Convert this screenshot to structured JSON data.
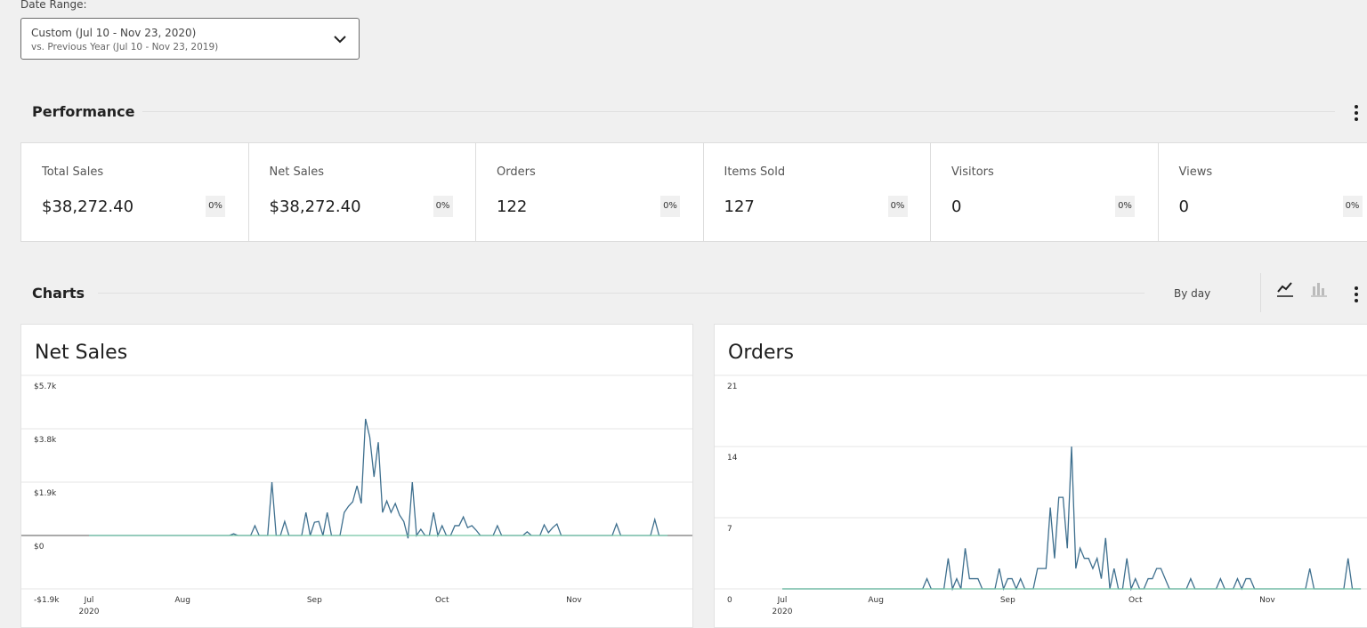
{
  "date_range": {
    "label": "Date Range:",
    "primary": "Custom (Jul 10 - Nov 23, 2020)",
    "secondary": "vs. Previous Year (Jul 10 - Nov 23, 2019)"
  },
  "performance": {
    "title": "Performance",
    "tiles": [
      {
        "label": "Total Sales",
        "value": "$38,272.40",
        "delta": "0%"
      },
      {
        "label": "Net Sales",
        "value": "$38,272.40",
        "delta": "0%"
      },
      {
        "label": "Orders",
        "value": "122",
        "delta": "0%"
      },
      {
        "label": "Items Sold",
        "value": "127",
        "delta": "0%"
      },
      {
        "label": "Visitors",
        "value": "0",
        "delta": "0%"
      },
      {
        "label": "Views",
        "value": "0",
        "delta": "0%"
      }
    ]
  },
  "charts_section": {
    "title": "Charts",
    "interval": "By day"
  },
  "chart_data": [
    {
      "type": "line",
      "title": "Net Sales",
      "year_label": "2020",
      "categories": [
        "Jul",
        null,
        null,
        null,
        null,
        null,
        null,
        null,
        null,
        null,
        null,
        null,
        null,
        null,
        null,
        null,
        null,
        null,
        null,
        null,
        null,
        null,
        "Aug",
        null,
        null,
        null,
        null,
        null,
        null,
        null,
        null,
        null,
        null,
        null,
        null,
        null,
        null,
        null,
        null,
        null,
        null,
        null,
        null,
        null,
        null,
        null,
        null,
        null,
        null,
        null,
        null,
        null,
        null,
        "Sep",
        null,
        null,
        null,
        null,
        null,
        null,
        null,
        null,
        null,
        null,
        null,
        null,
        null,
        null,
        null,
        null,
        null,
        null,
        null,
        null,
        null,
        null,
        null,
        null,
        null,
        null,
        null,
        null,
        null,
        "Oct",
        null,
        null,
        null,
        null,
        null,
        null,
        null,
        null,
        null,
        null,
        null,
        null,
        null,
        null,
        null,
        null,
        null,
        null,
        null,
        null,
        null,
        null,
        null,
        null,
        null,
        null,
        null,
        null,
        null,
        null,
        "Nov",
        null,
        null,
        null,
        null,
        null,
        null,
        null,
        null,
        null,
        null,
        null,
        null,
        null,
        null,
        null,
        null,
        null,
        null,
        null,
        null,
        null,
        null
      ],
      "ylim": [
        -1900,
        5700
      ],
      "yticks": [
        {
          "value": -1900,
          "label": "-$1.9k"
        },
        {
          "value": 0,
          "label": "$0"
        },
        {
          "value": 1900,
          "label": "$1.9k"
        },
        {
          "value": 3800,
          "label": "$3.8k"
        },
        {
          "value": 5700,
          "label": "$5.7k"
        }
      ],
      "grid": true,
      "series": [
        {
          "color": "#3e6f8e",
          "values": [
            0,
            0,
            0,
            0,
            0,
            0,
            0,
            0,
            0,
            0,
            0,
            0,
            0,
            0,
            0,
            0,
            0,
            0,
            0,
            0,
            0,
            0,
            0,
            0,
            0,
            0,
            0,
            0,
            0,
            0,
            0,
            0,
            0,
            0,
            60,
            0,
            0,
            0,
            0,
            350,
            0,
            0,
            0,
            1900,
            0,
            0,
            500,
            0,
            0,
            0,
            0,
            820,
            0,
            470,
            500,
            0,
            820,
            0,
            0,
            0,
            820,
            1040,
            1200,
            1770,
            1140,
            4150,
            3500,
            2090,
            3320,
            820,
            1230,
            820,
            1140,
            730,
            500,
            -100,
            1900,
            0,
            220,
            0,
            0,
            820,
            0,
            350,
            0,
            0,
            350,
            350,
            660,
            280,
            350,
            190,
            0,
            0,
            0,
            0,
            350,
            0,
            0,
            0,
            0,
            0,
            0,
            130,
            0,
            0,
            0,
            380,
            100,
            280,
            410,
            0,
            0,
            0,
            0,
            0,
            0,
            0,
            0,
            0,
            0,
            0,
            0,
            0,
            410,
            0,
            0,
            0,
            0,
            0,
            0,
            0,
            0,
            570,
            0,
            0,
            0
          ]
        },
        {
          "color": "#74c4a4",
          "values": [
            0,
            0,
            0,
            0,
            0,
            0,
            0,
            0,
            0,
            0,
            0,
            0,
            0,
            0,
            0,
            0,
            0,
            0,
            0,
            0,
            0,
            0,
            0,
            0,
            0,
            0,
            0,
            0,
            0,
            0,
            0,
            0,
            0,
            0,
            0,
            0,
            0,
            0,
            0,
            0,
            0,
            0,
            0,
            0,
            0,
            0,
            0,
            0,
            0,
            0,
            0,
            0,
            0,
            0,
            0,
            0,
            0,
            0,
            0,
            0,
            0,
            0,
            0,
            0,
            0,
            0,
            0,
            0,
            0,
            0,
            0,
            0,
            0,
            0,
            0,
            0,
            0,
            0,
            0,
            0,
            0,
            0,
            0,
            0,
            0,
            0,
            0,
            0,
            0,
            0,
            0,
            0,
            0,
            0,
            0,
            0,
            0,
            0,
            0,
            0,
            0,
            0,
            0,
            0,
            0,
            0,
            0,
            0,
            0,
            0,
            0,
            0,
            0,
            0,
            0,
            0,
            0,
            0,
            0,
            0,
            0,
            0,
            0,
            0,
            0,
            0,
            0,
            0,
            0,
            0,
            0,
            0,
            0,
            0,
            0,
            0,
            0
          ]
        }
      ]
    },
    {
      "type": "line",
      "title": "Orders",
      "year_label": "2020",
      "categories": [
        "Jul",
        null,
        null,
        null,
        null,
        null,
        null,
        null,
        null,
        null,
        null,
        null,
        null,
        null,
        null,
        null,
        null,
        null,
        null,
        null,
        null,
        null,
        "Aug",
        null,
        null,
        null,
        null,
        null,
        null,
        null,
        null,
        null,
        null,
        null,
        null,
        null,
        null,
        null,
        null,
        null,
        null,
        null,
        null,
        null,
        null,
        null,
        null,
        null,
        null,
        null,
        null,
        null,
        null,
        "Sep",
        null,
        null,
        null,
        null,
        null,
        null,
        null,
        null,
        null,
        null,
        null,
        null,
        null,
        null,
        null,
        null,
        null,
        null,
        null,
        null,
        null,
        null,
        null,
        null,
        null,
        null,
        null,
        null,
        null,
        "Oct",
        null,
        null,
        null,
        null,
        null,
        null,
        null,
        null,
        null,
        null,
        null,
        null,
        null,
        null,
        null,
        null,
        null,
        null,
        null,
        null,
        null,
        null,
        null,
        null,
        null,
        null,
        null,
        null,
        null,
        null,
        "Nov",
        null,
        null,
        null,
        null,
        null,
        null,
        null,
        null,
        null,
        null,
        null,
        null,
        null,
        null,
        null,
        null,
        null,
        null,
        null,
        null,
        null,
        null
      ],
      "ylim": [
        0,
        21
      ],
      "yticks": [
        0,
        7,
        14,
        21
      ],
      "grid": true,
      "series": [
        {
          "color": "#3e6f8e",
          "values": [
            0,
            0,
            0,
            0,
            0,
            0,
            0,
            0,
            0,
            0,
            0,
            0,
            0,
            0,
            0,
            0,
            0,
            0,
            0,
            0,
            0,
            0,
            0,
            0,
            0,
            0,
            0,
            0,
            0,
            0,
            0,
            0,
            0,
            0,
            1,
            0,
            0,
            0,
            0,
            3,
            0,
            1,
            0,
            4,
            1,
            1,
            1,
            0,
            0,
            0,
            0,
            2,
            0,
            1,
            1,
            0,
            1,
            0,
            0,
            0,
            2,
            2,
            2,
            8,
            3,
            9,
            9,
            4,
            14,
            2,
            4,
            3,
            3,
            2,
            3,
            1,
            5,
            0,
            2,
            0,
            0,
            3,
            0,
            1,
            0,
            0,
            1,
            1,
            2,
            2,
            1,
            0,
            0,
            0,
            0,
            0,
            1,
            0,
            0,
            0,
            0,
            0,
            0,
            1,
            0,
            0,
            0,
            1,
            0,
            1,
            1,
            0,
            0,
            0,
            0,
            0,
            0,
            0,
            0,
            0,
            0,
            0,
            0,
            0,
            2,
            0,
            0,
            0,
            0,
            0,
            0,
            0,
            0,
            3,
            0,
            0,
            0
          ]
        },
        {
          "color": "#74c4a4",
          "values": [
            0,
            0,
            0,
            0,
            0,
            0,
            0,
            0,
            0,
            0,
            0,
            0,
            0,
            0,
            0,
            0,
            0,
            0,
            0,
            0,
            0,
            0,
            0,
            0,
            0,
            0,
            0,
            0,
            0,
            0,
            0,
            0,
            0,
            0,
            0,
            0,
            0,
            0,
            0,
            0,
            0,
            0,
            0,
            0,
            0,
            0,
            0,
            0,
            0,
            0,
            0,
            0,
            0,
            0,
            0,
            0,
            0,
            0,
            0,
            0,
            0,
            0,
            0,
            0,
            0,
            0,
            0,
            0,
            0,
            0,
            0,
            0,
            0,
            0,
            0,
            0,
            0,
            0,
            0,
            0,
            0,
            0,
            0,
            0,
            0,
            0,
            0,
            0,
            0,
            0,
            0,
            0,
            0,
            0,
            0,
            0,
            0,
            0,
            0,
            0,
            0,
            0,
            0,
            0,
            0,
            0,
            0,
            0,
            0,
            0,
            0,
            0,
            0,
            0,
            0,
            0,
            0,
            0,
            0,
            0,
            0,
            0,
            0,
            0,
            0,
            0,
            0,
            0,
            0,
            0,
            0,
            0,
            0,
            0,
            0,
            0,
            0
          ]
        }
      ]
    }
  ]
}
